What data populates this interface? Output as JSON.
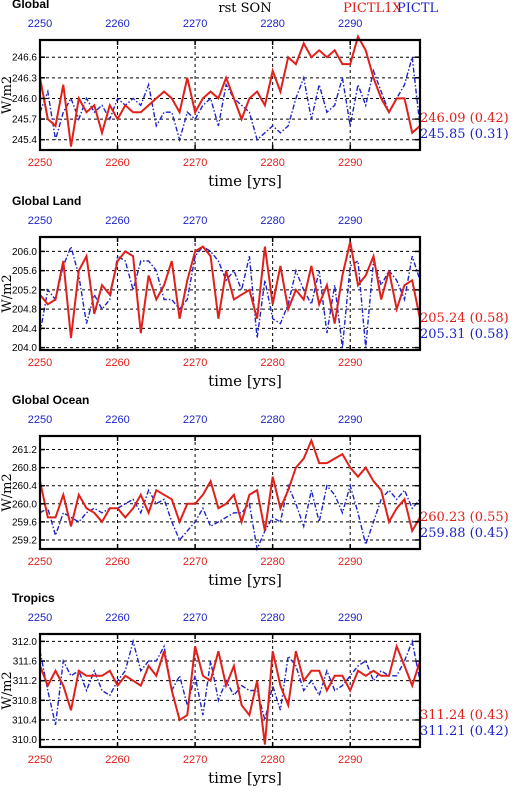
{
  "header": {
    "center_title": "rst SON",
    "series_labels": [
      "PICTL1X",
      "PICTL"
    ]
  },
  "colors": {
    "series1": "#e0201b",
    "series2": "#1d24c8",
    "grid": "#000000"
  },
  "chart_data": [
    {
      "type": "line",
      "title": "Global",
      "xlabel": "time [yrs]",
      "ylabel": "W/m2",
      "xlim": [
        2250,
        2299
      ],
      "ylim": [
        245.25,
        246.85
      ],
      "yticks": [
        "246.6",
        "246.3",
        "246.0",
        "245.7",
        "245.4"
      ],
      "ytick_values": [
        246.6,
        246.3,
        246.0,
        245.7,
        245.4
      ],
      "xticks": [
        "2250",
        "2260",
        "2270",
        "2280",
        "2290"
      ],
      "xtick_values": [
        2250,
        2260,
        2270,
        2280,
        2290
      ],
      "grid": true,
      "x": [
        2250,
        2251,
        2252,
        2253,
        2254,
        2255,
        2256,
        2257,
        2258,
        2259,
        2260,
        2261,
        2262,
        2263,
        2264,
        2265,
        2266,
        2267,
        2268,
        2269,
        2270,
        2271,
        2272,
        2273,
        2274,
        2275,
        2276,
        2277,
        2278,
        2279,
        2280,
        2281,
        2282,
        2283,
        2284,
        2285,
        2286,
        2287,
        2288,
        2289,
        2290,
        2291,
        2292,
        2293,
        2294,
        2295,
        2296,
        2297,
        2298,
        2299
      ],
      "series": [
        {
          "name": "PICTL1X",
          "summary": "246.09 (0.42)",
          "values": [
            246.3,
            245.7,
            245.6,
            246.2,
            245.3,
            246.0,
            245.8,
            245.9,
            245.5,
            245.9,
            245.7,
            245.9,
            245.8,
            245.8,
            245.9,
            246.0,
            246.1,
            246.0,
            245.8,
            246.3,
            245.8,
            246.0,
            246.1,
            246.0,
            246.3,
            246.0,
            245.7,
            246.0,
            246.1,
            245.9,
            246.4,
            246.1,
            246.6,
            246.5,
            246.8,
            246.6,
            246.7,
            246.6,
            246.7,
            246.5,
            246.5,
            246.9,
            246.7,
            246.3,
            246.0,
            245.8,
            246.0,
            246.0,
            245.5,
            245.6
          ]
        },
        {
          "name": "PICTL",
          "summary": "245.85 (0.31)",
          "values": [
            245.8,
            246.1,
            245.4,
            245.8,
            246.0,
            245.7,
            246.0,
            245.8,
            245.9,
            245.7,
            246.0,
            245.9,
            246.0,
            245.9,
            246.2,
            245.6,
            245.8,
            245.8,
            245.4,
            245.8,
            245.7,
            245.9,
            246.0,
            245.6,
            246.2,
            246.0,
            245.9,
            245.8,
            245.4,
            245.5,
            245.6,
            245.5,
            245.6,
            246.0,
            246.3,
            245.7,
            246.2,
            245.8,
            245.9,
            246.3,
            245.6,
            246.2,
            245.9,
            246.4,
            246.1,
            245.8,
            246.0,
            246.2,
            246.6,
            245.6
          ]
        }
      ]
    },
    {
      "type": "line",
      "title": "Global Land",
      "xlabel": "time [yrs]",
      "ylabel": "W/m2",
      "xlim": [
        2250,
        2299
      ],
      "ylim": [
        203.95,
        206.3
      ],
      "yticks": [
        "206.0",
        "205.6",
        "205.2",
        "204.8",
        "204.4",
        "204.0"
      ],
      "ytick_values": [
        206.0,
        205.6,
        205.2,
        204.8,
        204.4,
        204.0
      ],
      "xticks": [
        "2250",
        "2260",
        "2270",
        "2280",
        "2290"
      ],
      "xtick_values": [
        2250,
        2260,
        2270,
        2280,
        2290
      ],
      "grid": true,
      "x": [
        2250,
        2251,
        2252,
        2253,
        2254,
        2255,
        2256,
        2257,
        2258,
        2259,
        2260,
        2261,
        2262,
        2263,
        2264,
        2265,
        2266,
        2267,
        2268,
        2269,
        2270,
        2271,
        2272,
        2273,
        2274,
        2275,
        2276,
        2277,
        2278,
        2279,
        2280,
        2281,
        2282,
        2283,
        2284,
        2285,
        2286,
        2287,
        2288,
        2289,
        2290,
        2291,
        2292,
        2293,
        2294,
        2295,
        2296,
        2297,
        2298,
        2299
      ],
      "series": [
        {
          "name": "PICTL1X",
          "summary": "205.24 (0.58)",
          "values": [
            205.1,
            204.9,
            205.0,
            205.8,
            204.2,
            205.6,
            205.9,
            204.7,
            205.3,
            205.1,
            205.8,
            206.0,
            205.9,
            204.3,
            205.5,
            205.0,
            205.3,
            205.8,
            204.6,
            205.4,
            206.0,
            206.1,
            205.9,
            204.6,
            205.6,
            205.0,
            205.1,
            205.2,
            204.6,
            206.1,
            204.9,
            205.7,
            204.8,
            205.2,
            205.0,
            205.7,
            204.9,
            205.3,
            204.5,
            205.5,
            206.2,
            205.3,
            205.5,
            205.9,
            205.0,
            205.6,
            204.8,
            205.3,
            205.4,
            204.6
          ]
        },
        {
          "name": "PICTL",
          "summary": "205.31 (0.58)",
          "values": [
            204.3,
            205.2,
            205.0,
            205.7,
            206.1,
            205.5,
            204.5,
            205.1,
            204.8,
            205.0,
            205.9,
            205.8,
            205.2,
            205.8,
            205.8,
            205.6,
            205.0,
            205.0,
            204.8,
            205.0,
            205.9,
            206.1,
            206.0,
            205.8,
            205.4,
            205.6,
            205.2,
            205.9,
            204.2,
            205.4,
            204.6,
            204.5,
            204.9,
            205.6,
            205.2,
            204.9,
            205.6,
            204.3,
            205.3,
            204.0,
            205.7,
            205.8,
            204.0,
            205.8,
            205.3,
            205.6,
            205.4,
            205.0,
            205.9,
            205.4
          ]
        }
      ]
    },
    {
      "type": "line",
      "title": "Global Ocean",
      "xlabel": "time [yrs]",
      "ylabel": "W/m2",
      "xlim": [
        2250,
        2299
      ],
      "ylim": [
        259.0,
        261.5
      ],
      "yticks": [
        "261.2",
        "260.8",
        "260.4",
        "260.0",
        "259.6",
        "259.2"
      ],
      "ytick_values": [
        261.2,
        260.8,
        260.4,
        260.0,
        259.6,
        259.2
      ],
      "xticks": [
        "2250",
        "2260",
        "2270",
        "2280",
        "2290"
      ],
      "xtick_values": [
        2250,
        2260,
        2270,
        2280,
        2290
      ],
      "grid": true,
      "x": [
        2250,
        2251,
        2252,
        2253,
        2254,
        2255,
        2256,
        2257,
        2258,
        2259,
        2260,
        2261,
        2262,
        2263,
        2264,
        2265,
        2266,
        2267,
        2268,
        2269,
        2270,
        2271,
        2272,
        2273,
        2274,
        2275,
        2276,
        2277,
        2278,
        2279,
        2280,
        2281,
        2282,
        2283,
        2284,
        2285,
        2286,
        2287,
        2288,
        2289,
        2290,
        2291,
        2292,
        2293,
        2294,
        2295,
        2296,
        2297,
        2298,
        2299
      ],
      "series": [
        {
          "name": "PICTL1X",
          "summary": "260.23 (0.55)",
          "values": [
            260.5,
            259.7,
            259.7,
            260.2,
            259.5,
            260.2,
            259.9,
            259.8,
            259.6,
            259.9,
            259.9,
            259.7,
            259.9,
            260.2,
            259.8,
            260.3,
            260.2,
            260.1,
            259.6,
            260.0,
            260.0,
            260.2,
            260.5,
            259.9,
            260.0,
            260.2,
            259.6,
            260.2,
            260.3,
            259.4,
            260.6,
            259.9,
            260.3,
            260.8,
            261.0,
            261.4,
            260.9,
            260.9,
            261.0,
            261.1,
            260.8,
            260.6,
            260.8,
            260.5,
            260.3,
            259.6,
            259.9,
            260.1,
            259.4,
            259.7
          ]
        },
        {
          "name": "PICTL",
          "summary": "259.88 (0.45)",
          "values": [
            259.8,
            259.9,
            259.3,
            259.8,
            259.7,
            259.6,
            259.8,
            259.9,
            259.8,
            259.9,
            259.9,
            260.0,
            260.1,
            259.8,
            260.3,
            260.0,
            260.1,
            259.6,
            259.2,
            259.4,
            259.6,
            259.9,
            259.5,
            259.6,
            259.7,
            259.8,
            259.8,
            260.0,
            259.0,
            259.4,
            259.7,
            259.6,
            260.4,
            260.0,
            259.5,
            260.3,
            259.6,
            260.4,
            260.2,
            259.8,
            260.4,
            259.8,
            259.1,
            259.6,
            260.1,
            260.3,
            260.1,
            260.3,
            259.9,
            260.1
          ]
        }
      ]
    },
    {
      "type": "line",
      "title": "Tropics",
      "xlabel": "time [yrs]",
      "ylabel": "W/m2",
      "xlim": [
        2250,
        2299
      ],
      "ylim": [
        309.85,
        312.15
      ],
      "yticks": [
        "312.0",
        "311.6",
        "311.2",
        "310.8",
        "310.4",
        "310.0"
      ],
      "ytick_values": [
        312.0,
        311.6,
        311.2,
        310.8,
        310.4,
        310.0
      ],
      "xticks": [
        "2250",
        "2260",
        "2270",
        "2280",
        "2290"
      ],
      "xtick_values": [
        2250,
        2260,
        2270,
        2280,
        2290
      ],
      "grid": true,
      "x": [
        2250,
        2251,
        2252,
        2253,
        2254,
        2255,
        2256,
        2257,
        2258,
        2259,
        2260,
        2261,
        2262,
        2263,
        2264,
        2265,
        2266,
        2267,
        2268,
        2269,
        2270,
        2271,
        2272,
        2273,
        2274,
        2275,
        2276,
        2277,
        2278,
        2279,
        2280,
        2281,
        2282,
        2283,
        2284,
        2285,
        2286,
        2287,
        2288,
        2289,
        2290,
        2291,
        2292,
        2293,
        2294,
        2295,
        2296,
        2297,
        2298,
        2299
      ],
      "series": [
        {
          "name": "PICTL1X",
          "summary": "311.24 (0.43)",
          "values": [
            311.5,
            311.1,
            311.4,
            311.1,
            310.6,
            311.4,
            311.3,
            311.3,
            311.3,
            311.4,
            311.1,
            311.3,
            311.2,
            311.1,
            311.5,
            311.3,
            311.8,
            311.0,
            310.4,
            310.5,
            311.9,
            311.3,
            311.2,
            311.8,
            311.1,
            311.5,
            310.7,
            310.5,
            311.2,
            309.9,
            311.8,
            311.1,
            310.7,
            311.8,
            311.2,
            311.4,
            311.4,
            311.0,
            311.3,
            311.3,
            311.0,
            311.4,
            311.3,
            311.4,
            311.3,
            311.3,
            311.9,
            311.5,
            311.1,
            311.6
          ]
        },
        {
          "name": "PICTL",
          "summary": "311.21 (0.42)",
          "values": [
            311.8,
            311.0,
            310.3,
            311.6,
            311.3,
            311.4,
            311.0,
            311.4,
            311.0,
            310.9,
            311.2,
            311.4,
            312.0,
            311.4,
            311.6,
            311.6,
            311.9,
            311.0,
            311.3,
            310.7,
            311.3,
            310.5,
            311.6,
            310.8,
            311.2,
            310.9,
            311.1,
            311.0,
            311.0,
            310.4,
            311.1,
            310.6,
            311.7,
            311.5,
            311.0,
            311.2,
            310.9,
            311.4,
            311.0,
            311.1,
            311.3,
            311.5,
            311.6,
            311.2,
            311.4,
            311.3,
            311.3,
            311.6,
            312.0,
            311.2
          ]
        }
      ]
    }
  ]
}
